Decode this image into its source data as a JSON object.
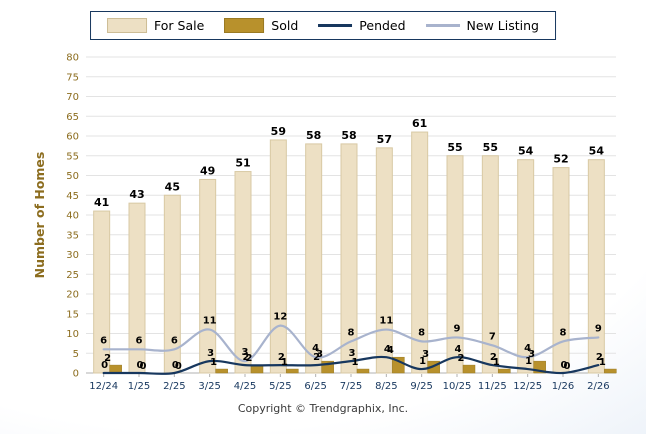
{
  "legend": {
    "items": [
      {
        "label": "For Sale",
        "type": "bar",
        "color": "#ede0c4",
        "border": "#cdbd96"
      },
      {
        "label": "Sold",
        "type": "bar",
        "color": "#b8912c",
        "border": "#9a7a23"
      },
      {
        "label": "Pended",
        "type": "line",
        "color": "#17375e"
      },
      {
        "label": "New Listing",
        "type": "line",
        "color": "#a8b3cd"
      }
    ]
  },
  "chart_data": {
    "type": "bar",
    "subtype": "grouped bars with smoothed overlay lines",
    "categories": [
      "12/24",
      "1/25",
      "2/25",
      "3/25",
      "4/25",
      "5/25",
      "6/25",
      "7/25",
      "8/25",
      "9/25",
      "10/25",
      "11/25",
      "12/25",
      "1/26",
      "2/26"
    ],
    "series": [
      {
        "name": "For Sale",
        "type": "bar",
        "color": "#ede0c4",
        "values": [
          41,
          43,
          45,
          49,
          51,
          59,
          58,
          58,
          57,
          61,
          55,
          55,
          54,
          52,
          54
        ]
      },
      {
        "name": "Sold",
        "type": "bar",
        "color": "#b8912c",
        "values": [
          2,
          0,
          0,
          1,
          2,
          1,
          3,
          1,
          4,
          3,
          2,
          1,
          3,
          0,
          1
        ]
      },
      {
        "name": "Pended",
        "type": "line",
        "color": "#17375e",
        "values": [
          0,
          0,
          0,
          3,
          2,
          2,
          2,
          3,
          4,
          1,
          4,
          2,
          1,
          0,
          2
        ]
      },
      {
        "name": "New Listing",
        "type": "line",
        "color": "#a8b3cd",
        "values": [
          6,
          6,
          6,
          11,
          3,
          12,
          4,
          8,
          11,
          8,
          9,
          7,
          4,
          8,
          9
        ]
      }
    ],
    "xlabel": "",
    "ylabel": "Number of Homes",
    "ylim": [
      0,
      80
    ],
    "ytick_step": 5,
    "grid": true,
    "legend_position": "top center",
    "value_labels": true
  },
  "axis_style": {
    "y_tick_color": "#8c6d1f",
    "x_tick_color": "#17375e",
    "grid_color": "#e3e3e3",
    "axis_color": "#b0b0b0",
    "label_color": "#000000"
  },
  "footer": {
    "copyright": "Copyright © Trendgraphix, Inc."
  }
}
